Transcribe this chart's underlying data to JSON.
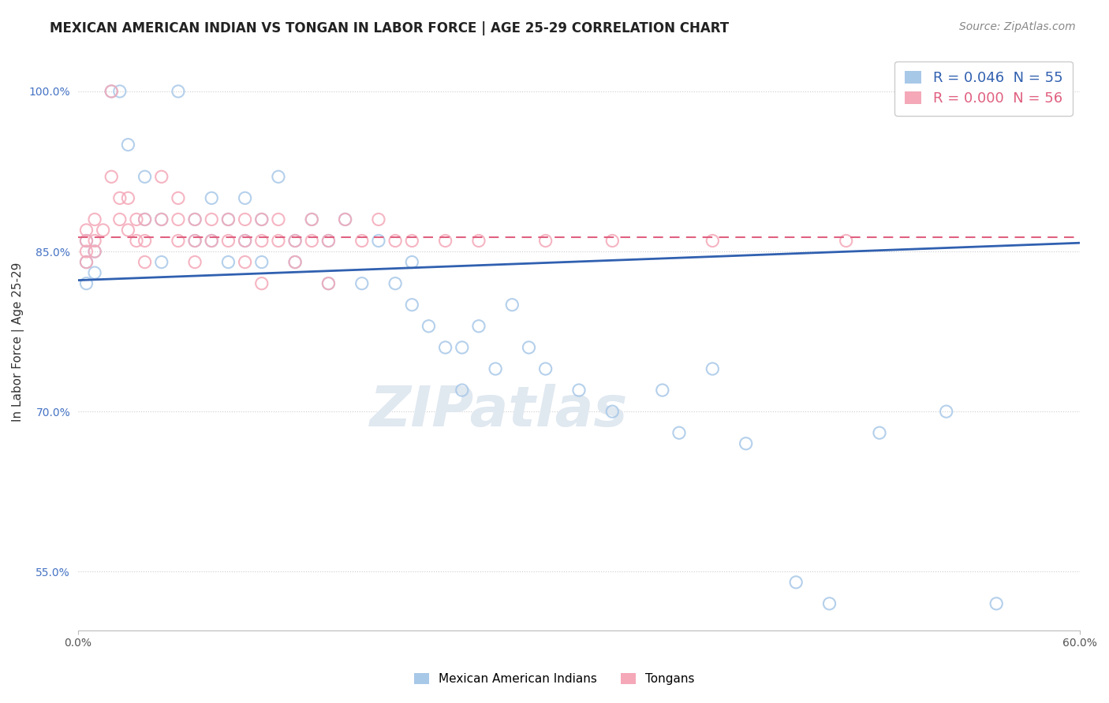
{
  "title": "MEXICAN AMERICAN INDIAN VS TONGAN IN LABOR FORCE | AGE 25-29 CORRELATION CHART",
  "source": "Source: ZipAtlas.com",
  "ylabel": "In Labor Force | Age 25-29",
  "x_min": 0.0,
  "x_max": 0.6,
  "y_min": 0.495,
  "y_max": 1.035,
  "x_ticks": [
    0.0,
    0.6
  ],
  "x_tick_labels": [
    "0.0%",
    "60.0%"
  ],
  "y_ticks": [
    0.55,
    0.7,
    0.85,
    1.0
  ],
  "y_tick_labels": [
    "55.0%",
    "70.0%",
    "85.0%",
    "100.0%"
  ],
  "legend_entries": [
    {
      "label": "R = 0.046  N = 55",
      "color": "#a8c8e8"
    },
    {
      "label": "R = 0.000  N = 56",
      "color": "#f4a8b8"
    }
  ],
  "legend_names": [
    "Mexican American Indians",
    "Tongans"
  ],
  "blue_color": "#a8c8e8",
  "pink_color": "#f4a8b8",
  "blue_line_color": "#3060b0",
  "pink_line_color": "#e06080",
  "watermark_text": "ZIPatlas",
  "blue_scatter_x": [
    0.005,
    0.005,
    0.005,
    0.01,
    0.01,
    0.02,
    0.025,
    0.03,
    0.04,
    0.04,
    0.05,
    0.05,
    0.06,
    0.07,
    0.07,
    0.08,
    0.08,
    0.09,
    0.09,
    0.1,
    0.1,
    0.11,
    0.11,
    0.12,
    0.13,
    0.13,
    0.14,
    0.15,
    0.15,
    0.16,
    0.17,
    0.18,
    0.19,
    0.2,
    0.2,
    0.21,
    0.22,
    0.23,
    0.23,
    0.24,
    0.25,
    0.26,
    0.27,
    0.28,
    0.3,
    0.32,
    0.35,
    0.36,
    0.38,
    0.4,
    0.43,
    0.45,
    0.48,
    0.52,
    0.55
  ],
  "blue_scatter_y": [
    0.84,
    0.86,
    0.82,
    0.83,
    0.85,
    1.0,
    1.0,
    0.95,
    0.92,
    0.88,
    0.88,
    0.84,
    1.0,
    0.88,
    0.86,
    0.9,
    0.86,
    0.88,
    0.84,
    0.9,
    0.86,
    0.84,
    0.88,
    0.92,
    0.86,
    0.84,
    0.88,
    0.86,
    0.82,
    0.88,
    0.82,
    0.86,
    0.82,
    0.8,
    0.84,
    0.78,
    0.76,
    0.76,
    0.72,
    0.78,
    0.74,
    0.8,
    0.76,
    0.74,
    0.72,
    0.7,
    0.72,
    0.68,
    0.74,
    0.67,
    0.54,
    0.52,
    0.68,
    0.7,
    0.52
  ],
  "pink_scatter_x": [
    0.005,
    0.005,
    0.005,
    0.005,
    0.01,
    0.01,
    0.01,
    0.015,
    0.02,
    0.02,
    0.025,
    0.025,
    0.03,
    0.03,
    0.035,
    0.035,
    0.04,
    0.04,
    0.04,
    0.05,
    0.05,
    0.06,
    0.06,
    0.06,
    0.07,
    0.07,
    0.07,
    0.08,
    0.08,
    0.09,
    0.09,
    0.1,
    0.1,
    0.1,
    0.11,
    0.11,
    0.11,
    0.12,
    0.12,
    0.13,
    0.13,
    0.14,
    0.14,
    0.15,
    0.15,
    0.16,
    0.17,
    0.18,
    0.19,
    0.2,
    0.22,
    0.24,
    0.28,
    0.32,
    0.38,
    0.46
  ],
  "pink_scatter_y": [
    0.86,
    0.87,
    0.85,
    0.84,
    0.88,
    0.86,
    0.85,
    0.87,
    1.0,
    0.92,
    0.9,
    0.88,
    0.9,
    0.87,
    0.88,
    0.86,
    0.88,
    0.86,
    0.84,
    0.92,
    0.88,
    0.9,
    0.88,
    0.86,
    0.88,
    0.86,
    0.84,
    0.88,
    0.86,
    0.88,
    0.86,
    0.88,
    0.86,
    0.84,
    0.88,
    0.86,
    0.82,
    0.88,
    0.86,
    0.86,
    0.84,
    0.88,
    0.86,
    0.86,
    0.82,
    0.88,
    0.86,
    0.88,
    0.86,
    0.86,
    0.86,
    0.86,
    0.86,
    0.86,
    0.86,
    0.86
  ],
  "blue_trend_x": [
    0.0,
    0.6
  ],
  "blue_trend_y": [
    0.823,
    0.858
  ],
  "pink_trend_x": [
    0.0,
    0.6
  ],
  "pink_trend_y": [
    0.863,
    0.863
  ],
  "title_fontsize": 12,
  "source_fontsize": 10,
  "axis_label_fontsize": 11,
  "tick_fontsize": 10,
  "watermark_fontsize": 52,
  "watermark_color": "#e0e8f0",
  "background_color": "#ffffff",
  "grid_color": "#cccccc"
}
